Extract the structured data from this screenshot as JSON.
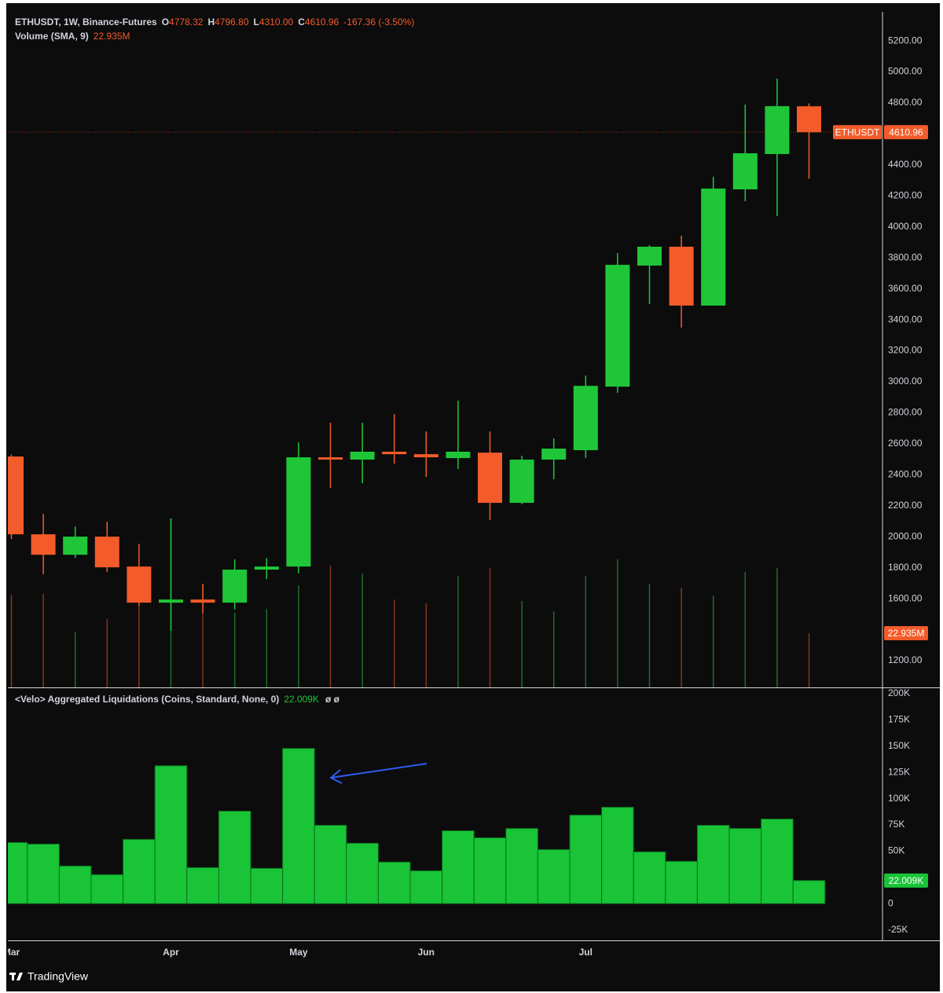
{
  "footer": {
    "brand": "TradingView"
  },
  "chart_data": [
    {
      "type": "candlestick",
      "title": "ETHUSDT, 1W, Binance-Futures",
      "ohlc": [
        {
          "key": "O",
          "label": "4778.32"
        },
        {
          "key": "H",
          "label": "4796.80"
        },
        {
          "key": "L",
          "label": "4310.00"
        },
        {
          "key": "C",
          "label": "4610.96"
        }
      ],
      "change": "-167.36 (-3.50%)",
      "price_tag": "ETHUSDT",
      "categories": [
        "Mar",
        null,
        null,
        null,
        null,
        "Apr",
        null,
        null,
        null,
        "May",
        null,
        null,
        null,
        "Jun",
        null,
        null,
        null,
        null,
        "Jul",
        null,
        null,
        null,
        null,
        null,
        null,
        null
      ],
      "open": [
        2518,
        2016,
        1884,
        2001,
        1808,
        1575,
        1595,
        1575,
        1788,
        1808,
        2513,
        2498,
        2549,
        2533,
        2508,
        2543,
        2219,
        2498,
        2559,
        2969,
        3750,
        3872,
        3492,
        4242,
        4470,
        4778.32
      ],
      "high": [
        2530,
        2148,
        2067,
        2097,
        1955,
        2118,
        1697,
        1854,
        1864,
        2609,
        2736,
        2736,
        2792,
        2680,
        2878,
        2680,
        2523,
        2635,
        3040,
        3831,
        3882,
        3943,
        4323,
        4789,
        4957,
        4796.8
      ],
      "low": [
        1985,
        1758,
        1864,
        1773,
        1555,
        1393,
        1509,
        1530,
        1727,
        1763,
        2315,
        2346,
        2472,
        2386,
        2437,
        2107,
        2210,
        2371,
        2508,
        2929,
        3502,
        3350,
        3492,
        4166,
        4070,
        4310
      ],
      "close": [
        2016,
        1884,
        2001,
        1803,
        1575,
        1595,
        1575,
        1788,
        1808,
        2513,
        2498,
        2549,
        2533,
        2513,
        2549,
        2219,
        2498,
        2569,
        2974,
        3755,
        3872,
        3492,
        4247,
        4475,
        4779,
        4610.96
      ],
      "volume": {
        "name": "Volume (SMA, 9)",
        "values": [
          39.2,
          39.6,
          23.3,
          28.9,
          36.6,
          71.5,
          43.2,
          31.6,
          33.2,
          43.2,
          51.5,
          48.2,
          37.2,
          35.6,
          47.2,
          50.5,
          36.6,
          32.2,
          47.2,
          54.2,
          43.9,
          42.2,
          38.9,
          48.9,
          50.5,
          22.935
        ],
        "value_labels": [
          null,
          null,
          null,
          null,
          null,
          null,
          null,
          null,
          null,
          null,
          null,
          null,
          null,
          null,
          null,
          null,
          null,
          null,
          null,
          null,
          null,
          null,
          null,
          null,
          null,
          "22.935M"
        ]
      },
      "colors": {
        "up": "#1fc738",
        "down": "#f35b2a",
        "volume_up": "#1f6e2d",
        "volume_down": "#86351d"
      },
      "ylim": [
        1028,
        5388
      ],
      "yticks": [
        {
          "value": 5200,
          "label": "5200.00"
        },
        {
          "value": 5000,
          "label": "5000.00"
        },
        {
          "value": 4800,
          "label": "4800.00"
        },
        {
          "value": 4400,
          "label": "4400.00"
        },
        {
          "value": 4200,
          "label": "4200.00"
        },
        {
          "value": 4000,
          "label": "4000.00"
        },
        {
          "value": 3800,
          "label": "3800.00"
        },
        {
          "value": 3600,
          "label": "3600.00"
        },
        {
          "value": 3400,
          "label": "3400.00"
        },
        {
          "value": 3200,
          "label": "3200.00"
        },
        {
          "value": 3000,
          "label": "3000.00"
        },
        {
          "value": 2800,
          "label": "2800.00"
        },
        {
          "value": 2600,
          "label": "2600.00"
        },
        {
          "value": 2400,
          "label": "2400.00"
        },
        {
          "value": 2200,
          "label": "2200.00"
        },
        {
          "value": 2000,
          "label": "2000.00"
        },
        {
          "value": 1800,
          "label": "1800.00"
        },
        {
          "value": 1600,
          "label": "1600.00"
        },
        {
          "value": 1200,
          "label": "1200.00"
        }
      ],
      "grid": false
    },
    {
      "type": "bar",
      "title": "<Velo> Aggregated Liquidations (Coins, Standard, None, 0)",
      "status": "ø ø",
      "color": "#19c437",
      "values": [
        58200,
        56700,
        35800,
        27600,
        61200,
        131300,
        34300,
        88100,
        33600,
        147800,
        74600,
        57500,
        39600,
        31300,
        69400,
        62700,
        71600,
        51500,
        84300,
        91800,
        49300,
        40300,
        74600,
        71600,
        80600,
        22009
      ],
      "value_labels": [
        null,
        null,
        null,
        null,
        null,
        null,
        null,
        null,
        null,
        null,
        null,
        null,
        null,
        null,
        null,
        null,
        null,
        null,
        null,
        null,
        null,
        null,
        null,
        null,
        null,
        "22.009K"
      ],
      "ylim": [
        -35000,
        205200
      ],
      "yticks": [
        {
          "value": 200000,
          "label": "200K"
        },
        {
          "value": 175000,
          "label": "175K"
        },
        {
          "value": 150000,
          "label": "150K"
        },
        {
          "value": 125000,
          "label": "125K"
        },
        {
          "value": 100000,
          "label": "100K"
        },
        {
          "value": 75000,
          "label": "75K"
        },
        {
          "value": 50000,
          "label": "50K"
        },
        0,
        {
          "value": -25000,
          "label": "-25K"
        }
      ],
      "grid": false
    }
  ]
}
